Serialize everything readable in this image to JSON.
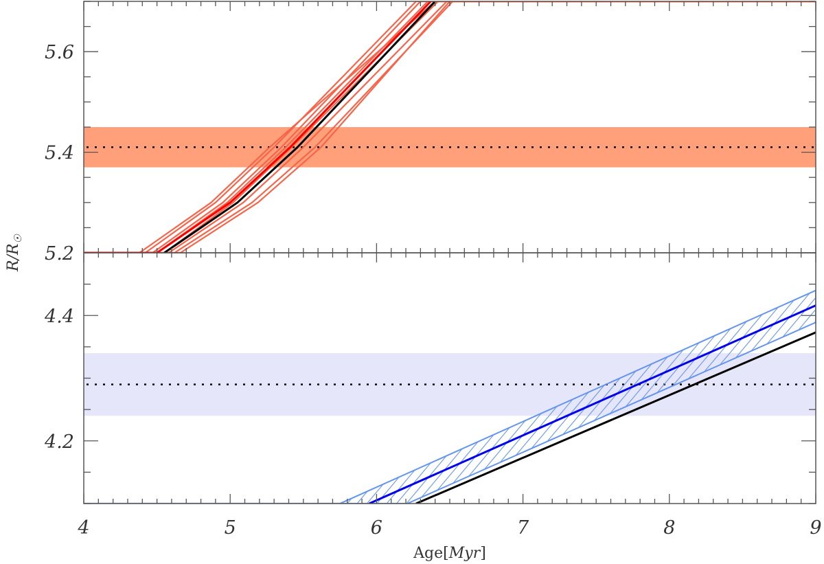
{
  "chart_data": [
    {
      "type": "line",
      "panel": "top",
      "xlim": [
        4,
        9
      ],
      "ylim": [
        5.2,
        5.7
      ],
      "xticks": [
        4,
        5,
        6,
        7,
        8,
        9
      ],
      "yticks": [
        5.2,
        5.4,
        5.6
      ],
      "ytick_labels": [
        "5.2",
        "5.4",
        "5.6"
      ],
      "observed": {
        "value": 5.41,
        "low": 5.37,
        "high": 5.45,
        "band_color": "#ffa07a"
      },
      "series": [
        {
          "color": "#f8644a",
          "points": [
            [
              4,
              5.2
            ],
            [
              4.38,
              5.2
            ],
            [
              4.87,
              5.3
            ],
            [
              5.27,
              5.41
            ],
            [
              6.4,
              5.7
            ],
            [
              9,
              5.7
            ]
          ]
        },
        {
          "color": "#f8644a",
          "points": [
            [
              4,
              5.2
            ],
            [
              4.42,
              5.2
            ],
            [
              4.9,
              5.3
            ],
            [
              5.3,
              5.41
            ],
            [
              6.27,
              5.7
            ],
            [
              9,
              5.7
            ]
          ]
        },
        {
          "color": "#f8644a",
          "points": [
            [
              4,
              5.2
            ],
            [
              4.47,
              5.2
            ],
            [
              4.95,
              5.3
            ],
            [
              5.35,
              5.41
            ],
            [
              6.3,
              5.7
            ],
            [
              9,
              5.7
            ]
          ]
        },
        {
          "color": "#f8644a",
          "points": [
            [
              4,
              5.2
            ],
            [
              4.5,
              5.2
            ],
            [
              4.98,
              5.3
            ],
            [
              5.38,
              5.41
            ],
            [
              6.35,
              5.7
            ],
            [
              9,
              5.7
            ]
          ]
        },
        {
          "color": "#f8644a",
          "points": [
            [
              4,
              5.2
            ],
            [
              4.55,
              5.2
            ],
            [
              5.02,
              5.3
            ],
            [
              5.42,
              5.41
            ],
            [
              6.42,
              5.7
            ],
            [
              9,
              5.7
            ]
          ]
        },
        {
          "color": "#f8644a",
          "points": [
            [
              4,
              5.2
            ],
            [
              4.58,
              5.2
            ],
            [
              5.09,
              5.3
            ],
            [
              5.5,
              5.41
            ],
            [
              6.48,
              5.7
            ],
            [
              9,
              5.7
            ]
          ]
        },
        {
          "color": "#f8644a",
          "points": [
            [
              4,
              5.2
            ],
            [
              4.62,
              5.2
            ],
            [
              5.15,
              5.3
            ],
            [
              5.58,
              5.41
            ],
            [
              6.52,
              5.7
            ],
            [
              9,
              5.7
            ]
          ]
        },
        {
          "color": "#f8644a",
          "points": [
            [
              4,
              5.2
            ],
            [
              4.66,
              5.2
            ],
            [
              5.19,
              5.3
            ],
            [
              5.62,
              5.41
            ],
            [
              6.5,
              5.7
            ],
            [
              9,
              5.7
            ]
          ]
        },
        {
          "color": "#ff0000",
          "points": [
            [
              4,
              5.2
            ],
            [
              4.5,
              5.2
            ],
            [
              5.0,
              5.3
            ],
            [
              5.41,
              5.41
            ],
            [
              6.37,
              5.7
            ]
          ]
        },
        {
          "color": "#000000",
          "points": [
            [
              4.55,
              5.2
            ],
            [
              5.05,
              5.3
            ],
            [
              5.46,
              5.41
            ],
            [
              6.4,
              5.7
            ]
          ]
        }
      ]
    },
    {
      "type": "line",
      "panel": "bottom",
      "xlim": [
        4,
        9
      ],
      "ylim": [
        4.1,
        4.5
      ],
      "xticks": [
        4,
        5,
        6,
        7,
        8,
        9
      ],
      "xtick_labels": [
        "4",
        "5",
        "6",
        "7",
        "8",
        "9"
      ],
      "yticks": [
        4.2,
        4.4
      ],
      "ytick_labels": [
        "4.2",
        "4.4"
      ],
      "xlabel": "Age",
      "xlabel_unit": "Myr",
      "ylabel": "R/R",
      "ylabel_symbol": "☉",
      "observed": {
        "value": 4.29,
        "low": 4.24,
        "high": 4.34,
        "band_color": "#e6e6fa"
      },
      "hatched_band": {
        "color": "#6495ed",
        "upper": [
          [
            5.75,
            4.1
          ],
          [
            9,
            4.44
          ]
        ],
        "lower": [
          [
            6.21,
            4.1
          ],
          [
            9,
            4.389
          ]
        ]
      },
      "series": [
        {
          "color": "#6495ed",
          "points": [
            [
              4,
              4.1
            ],
            [
              5.75,
              4.1
            ]
          ]
        },
        {
          "color": "#0000ee",
          "points": [
            [
              5.95,
              4.1
            ],
            [
              9,
              4.416
            ]
          ]
        },
        {
          "color": "#000000",
          "points": [
            [
              6.27,
              4.1
            ],
            [
              9,
              4.373
            ]
          ]
        }
      ]
    }
  ]
}
